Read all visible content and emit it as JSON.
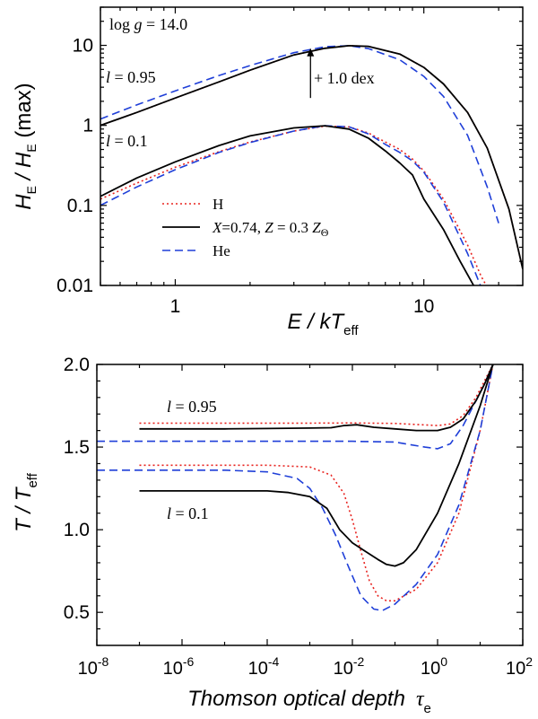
{
  "chart_data": [
    {
      "type": "line",
      "scale": "log-log",
      "xlim": [
        0.5,
        25
      ],
      "ylim": [
        0.01,
        30
      ],
      "xticks": [
        {
          "v": 1,
          "label": "1"
        },
        {
          "v": 10,
          "label": "10"
        }
      ],
      "yticks": [
        {
          "v": 0.01,
          "label": "0.01"
        },
        {
          "v": 0.1,
          "label": "0.1"
        },
        {
          "v": 1,
          "label": "1"
        },
        {
          "v": 10,
          "label": "10"
        }
      ],
      "ylabel": {
        "main": "H",
        "sub": "E",
        "mid": " / H",
        "sub2": "E",
        "tail": " (max)"
      },
      "xlabel": {
        "main": "E / kT",
        "sub": "eff"
      },
      "annotations": {
        "logg": {
          "text": "log g = 14.0",
          "pre": "log ",
          "g": "g",
          "post": " = 14.0"
        },
        "l095": {
          "l": "l",
          "rest": " = 0.95"
        },
        "l01": {
          "l": "l",
          "rest": " = 0.1"
        },
        "arrow_label": "+ 1.0 dex",
        "arrow_x": 3.5,
        "arrow_from": 2.2,
        "arrow_to": 9.2
      },
      "legend": {
        "placement": "lower-left",
        "items": [
          {
            "series": "H",
            "label": "H"
          },
          {
            "series": "solar",
            "label": "X=0.74, Z = 0.3 Z⊙",
            "parts": {
              "X": "X",
              "a": "=0.74, ",
              "Z": "Z",
              "b": " = 0.3 ",
              "Z2": "Z",
              "sub": "Θ"
            }
          },
          {
            "series": "He",
            "label": "He"
          }
        ]
      },
      "series": [
        {
          "name": "H",
          "group": "l=0.95",
          "color": "#e8231f",
          "dash": "dotted",
          "x": [
            0.5,
            0.7,
            1,
            1.5,
            2,
            3,
            4,
            5,
            6,
            8,
            10,
            12,
            15,
            18,
            22,
            25
          ],
          "y": [
            1.0,
            1.45,
            2.2,
            3.5,
            4.9,
            7.6,
            9.2,
            9.9,
            9.7,
            7.8,
            5.3,
            3.3,
            1.45,
            0.52,
            0.09,
            0.016
          ]
        },
        {
          "name": "solar",
          "group": "l=0.95",
          "color": "#000000",
          "dash": "solid",
          "x": [
            0.5,
            0.7,
            1,
            1.5,
            2,
            3,
            4,
            5,
            6,
            8,
            10,
            12,
            15,
            18,
            22,
            25
          ],
          "y": [
            1.0,
            1.45,
            2.2,
            3.5,
            4.9,
            7.6,
            9.2,
            9.9,
            9.7,
            7.8,
            5.3,
            3.3,
            1.45,
            0.52,
            0.09,
            0.016
          ]
        },
        {
          "name": "He",
          "group": "l=0.95",
          "color": "#1f3fd8",
          "dash": "dashed",
          "x": [
            0.5,
            0.7,
            1,
            1.5,
            2,
            3,
            4,
            5,
            6,
            8,
            10,
            12,
            15,
            18,
            20
          ],
          "y": [
            1.2,
            1.8,
            2.7,
            4.2,
            5.6,
            8.1,
            9.6,
            9.9,
            9.1,
            6.6,
            4.1,
            2.3,
            0.75,
            0.17,
            0.06
          ]
        },
        {
          "name": "H",
          "group": "l=0.1",
          "color": "#e8231f",
          "dash": "dotted",
          "x": [
            0.5,
            0.7,
            1,
            1.5,
            2,
            3,
            4,
            5,
            6,
            7,
            8,
            9,
            10,
            12,
            15,
            17,
            18
          ],
          "y": [
            0.12,
            0.19,
            0.3,
            0.47,
            0.62,
            0.85,
            0.98,
            0.96,
            0.8,
            0.62,
            0.5,
            0.38,
            0.27,
            0.12,
            0.032,
            0.013,
            0.0095
          ]
        },
        {
          "name": "solar",
          "group": "l=0.1",
          "color": "#000000",
          "dash": "solid",
          "x": [
            0.5,
            0.7,
            1,
            1.5,
            2,
            3,
            4,
            5,
            6,
            7,
            8,
            9,
            10,
            12,
            14,
            16
          ],
          "y": [
            0.13,
            0.22,
            0.35,
            0.56,
            0.74,
            0.93,
            0.99,
            0.9,
            0.69,
            0.48,
            0.34,
            0.24,
            0.12,
            0.05,
            0.02,
            0.0095
          ]
        },
        {
          "name": "He",
          "group": "l=0.1",
          "color": "#1f3fd8",
          "dash": "dashed",
          "x": [
            0.5,
            0.7,
            1,
            1.5,
            2,
            3,
            4,
            5,
            6,
            7,
            8,
            9,
            10,
            12,
            15,
            17
          ],
          "y": [
            0.1,
            0.17,
            0.28,
            0.46,
            0.61,
            0.85,
            0.99,
            0.96,
            0.78,
            0.58,
            0.46,
            0.36,
            0.26,
            0.11,
            0.025,
            0.0095
          ]
        }
      ]
    },
    {
      "type": "line",
      "scale": "logx",
      "xlim": [
        1e-08,
        100
      ],
      "ylim": [
        0.3,
        2.0
      ],
      "xticks": [
        {
          "v": -8,
          "label": "10",
          "exp": "-8"
        },
        {
          "v": -6,
          "label": "10",
          "exp": "-6"
        },
        {
          "v": -4,
          "label": "10",
          "exp": "-4"
        },
        {
          "v": -2,
          "label": "10",
          "exp": "-2"
        },
        {
          "v": 0,
          "label": "10",
          "exp": "0"
        },
        {
          "v": 2,
          "label": "10",
          "exp": "2"
        }
      ],
      "yticks": [
        {
          "v": 0.5,
          "label": "0.5"
        },
        {
          "v": 1.0,
          "label": "1.0"
        },
        {
          "v": 1.5,
          "label": "1.5"
        },
        {
          "v": 2.0,
          "label": "2.0"
        }
      ],
      "ylabel": {
        "main": "T / T",
        "sub": "eff"
      },
      "xlabel": {
        "main": "Thomson optical depth",
        "tau": "τ",
        "sub": "e"
      },
      "annotations": {
        "l095": {
          "l": "l",
          "rest": " = 0.95"
        },
        "l01": {
          "l": "l",
          "rest": " = 0.1"
        }
      },
      "series": [
        {
          "name": "H",
          "group": "l=0.95",
          "color": "#e8231f",
          "dash": "dotted",
          "logx": [
            -7,
            -5,
            -3,
            -2,
            -1,
            0,
            0.3,
            0.6,
            0.9,
            1.1,
            1.3
          ],
          "y": [
            1.645,
            1.645,
            1.645,
            1.646,
            1.643,
            1.63,
            1.64,
            1.69,
            1.8,
            1.9,
            2.0
          ]
        },
        {
          "name": "solar",
          "group": "l=0.95",
          "color": "#000000",
          "dash": "solid",
          "logx": [
            -7,
            -5,
            -4,
            -3,
            -2.5,
            -2.2,
            -1.9,
            -1.5,
            -1,
            -0.5,
            0,
            0.3,
            0.6,
            0.9,
            1.1,
            1.3
          ],
          "y": [
            1.61,
            1.61,
            1.612,
            1.615,
            1.617,
            1.63,
            1.635,
            1.62,
            1.61,
            1.6,
            1.6,
            1.62,
            1.67,
            1.78,
            1.88,
            2.0
          ]
        },
        {
          "name": "He",
          "group": "l=0.95",
          "color": "#1f3fd8",
          "dash": "dashed",
          "logx": [
            -8,
            -6,
            -4,
            -2,
            -1,
            -0.3,
            0,
            0.3,
            0.6,
            0.9,
            1.1,
            1.3
          ],
          "y": [
            1.535,
            1.535,
            1.535,
            1.535,
            1.53,
            1.5,
            1.49,
            1.52,
            1.63,
            1.78,
            1.88,
            2.0
          ]
        },
        {
          "name": "H",
          "group": "l=0.1",
          "color": "#e8231f",
          "dash": "dotted",
          "logx": [
            -7,
            -4,
            -3,
            -2.5,
            -2.2,
            -2,
            -1.8,
            -1.6,
            -1.4,
            -1.2,
            -1,
            -0.5,
            0,
            0.5,
            1,
            1.3
          ],
          "y": [
            1.39,
            1.39,
            1.38,
            1.33,
            1.22,
            1.06,
            0.87,
            0.69,
            0.6,
            0.57,
            0.57,
            0.64,
            0.8,
            1.1,
            1.6,
            2.0
          ]
        },
        {
          "name": "solar",
          "group": "l=0.1",
          "color": "#000000",
          "dash": "solid",
          "logx": [
            -7,
            -4,
            -3.5,
            -3,
            -2.6,
            -2.3,
            -2,
            -1.7,
            -1.4,
            -1.2,
            -1,
            -0.8,
            -0.5,
            0,
            0.5,
            1,
            1.3
          ],
          "y": [
            1.235,
            1.235,
            1.225,
            1.2,
            1.13,
            1.0,
            0.92,
            0.87,
            0.82,
            0.79,
            0.78,
            0.8,
            0.88,
            1.1,
            1.4,
            1.75,
            2.0
          ]
        },
        {
          "name": "He",
          "group": "l=0.1",
          "color": "#1f3fd8",
          "dash": "dashed",
          "logx": [
            -8,
            -5,
            -4,
            -3.3,
            -3,
            -2.7,
            -2.4,
            -2.1,
            -1.8,
            -1.5,
            -1.3,
            -1,
            -0.5,
            0,
            0.5,
            1,
            1.3
          ],
          "y": [
            1.36,
            1.36,
            1.35,
            1.31,
            1.25,
            1.13,
            0.97,
            0.78,
            0.6,
            0.52,
            0.51,
            0.55,
            0.67,
            0.85,
            1.15,
            1.6,
            2.0
          ]
        }
      ]
    }
  ]
}
